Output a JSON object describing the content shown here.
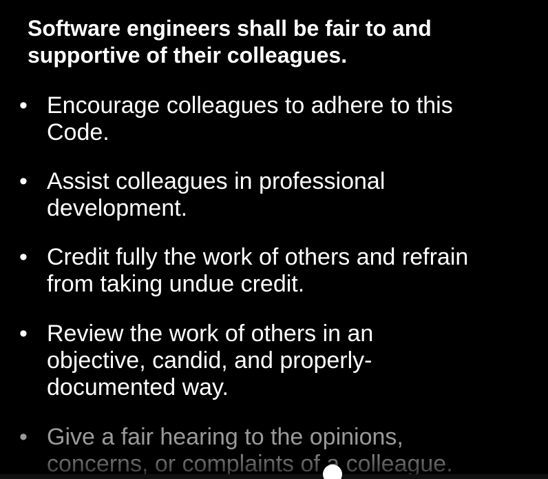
{
  "slide": {
    "heading": "Software engineers shall be fair to and\nsupportive of their colleagues.",
    "bullets": [
      {
        "marker": "•",
        "text": "Encourage colleagues to adhere to this\nCode."
      },
      {
        "marker": "•",
        "text": "Assist colleagues in professional\ndevelopment."
      },
      {
        "marker": "•",
        "text": "Credit fully the work of others and refrain\nfrom taking undue credit."
      },
      {
        "marker": "•",
        "text": "Review the work of others in an\nobjective, candid, and properly-\ndocumented way."
      },
      {
        "marker": "•",
        "text": "Give a fair hearing to the opinions,\nconcerns, or complaints of a colleague."
      }
    ]
  },
  "colors": {
    "background": "#000000",
    "text": "#ffffff",
    "dimmed_text": "#9a9a9a"
  },
  "scrub": {
    "progress": 0.6
  }
}
